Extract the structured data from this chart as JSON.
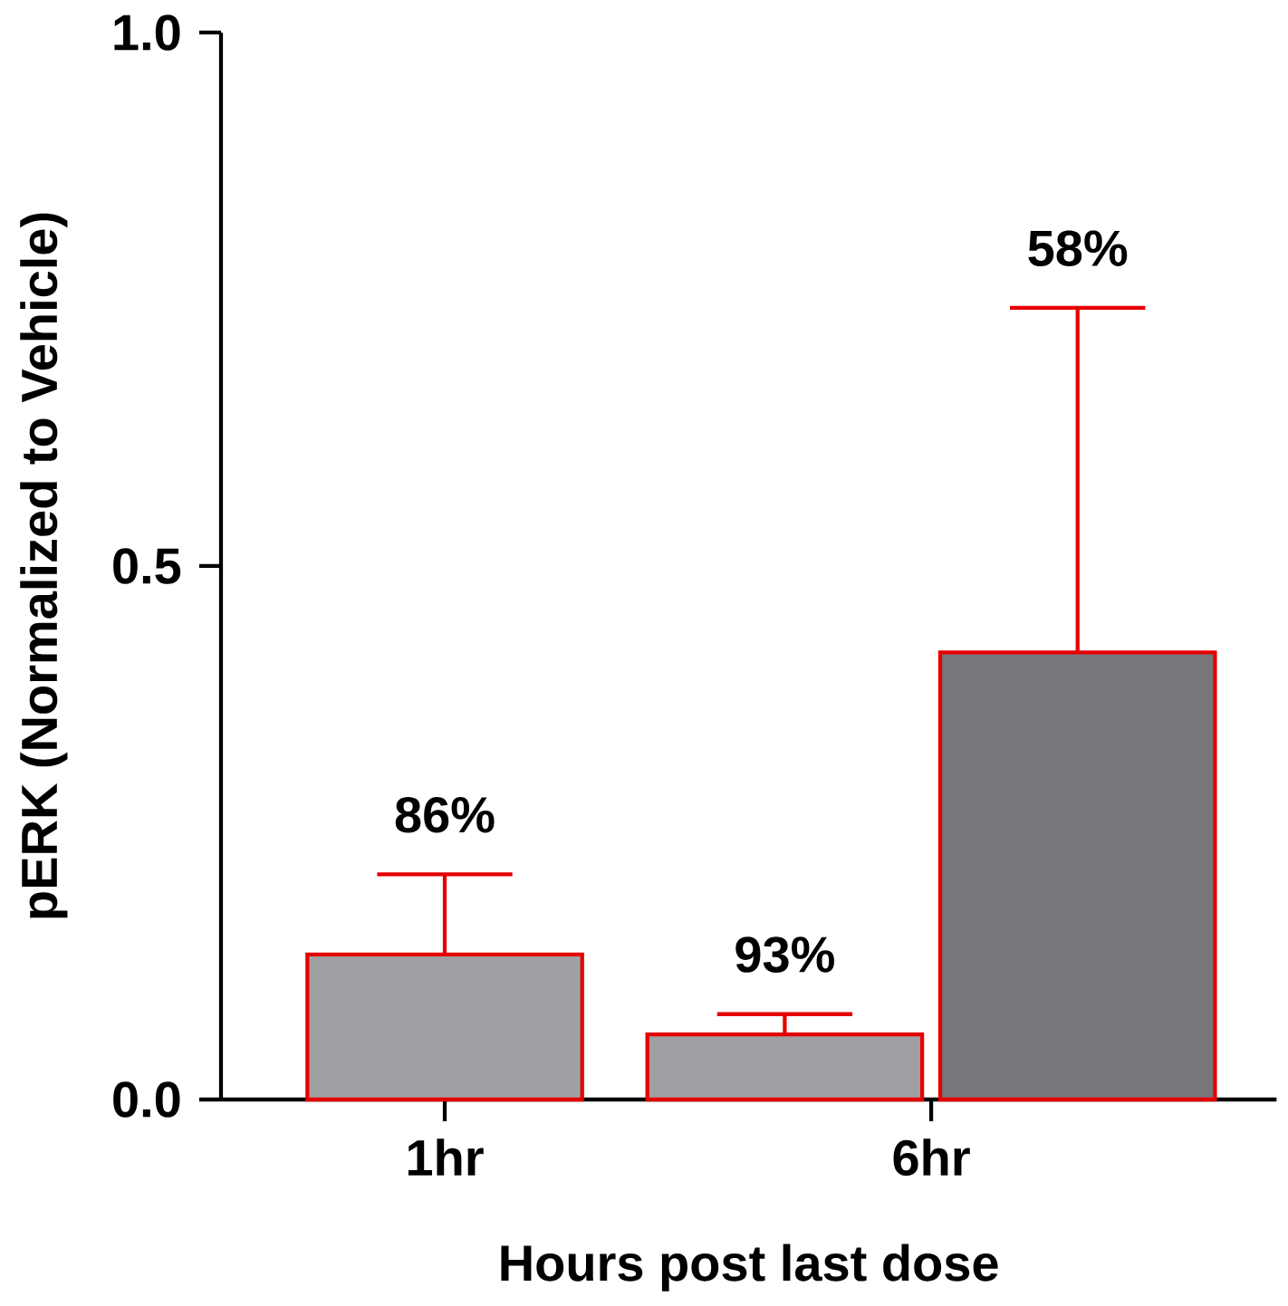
{
  "chart_data": {
    "type": "bar",
    "xlabel": "Hours post last dose",
    "ylabel": "pERK (Normalized to Vehicle)",
    "categories": [
      "1hr",
      "6hr"
    ],
    "series": [
      {
        "color": "#a0a0a4",
        "values": [
          0.136,
          0.061
        ],
        "errors": [
          [
            0.136,
            0.211
          ],
          [
            0.061,
            0.08
          ]
        ]
      },
      {
        "color": "#77777b",
        "values": [
          null,
          0.419
        ],
        "errors": [
          null,
          [
            0.419,
            0.742
          ]
        ]
      }
    ],
    "annotations": [
      "86%",
      "93%",
      "58%"
    ],
    "ylim": [
      0,
      1.0
    ],
    "yticks": [
      {
        "value": 0,
        "label": "0.0"
      },
      {
        "value": 0.5,
        "label": "0.5"
      },
      {
        "value": 1.0,
        "label": "1.0"
      }
    ]
  }
}
